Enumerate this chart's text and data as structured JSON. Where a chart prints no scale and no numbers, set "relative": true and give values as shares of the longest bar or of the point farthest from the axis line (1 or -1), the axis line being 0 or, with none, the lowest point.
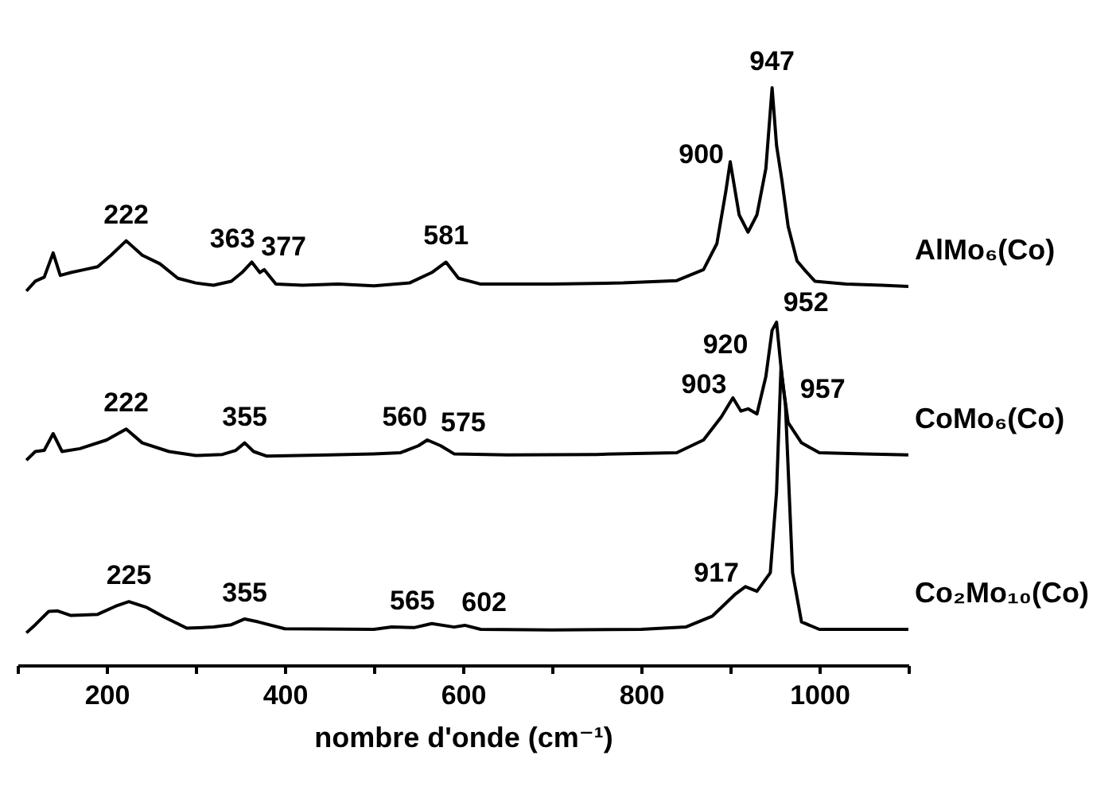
{
  "chart_data": {
    "type": "line",
    "relative": true,
    "xlabel": "nombre d'onde (cm⁻¹)",
    "xlim": [
      100,
      1100
    ],
    "xticks": [
      {
        "value": 100,
        "label": null
      },
      200,
      {
        "value": 300,
        "label": null
      },
      400,
      {
        "value": 500,
        "label": null
      },
      600,
      {
        "value": 700,
        "label": null
      },
      800,
      {
        "value": 900,
        "label": null
      },
      1000,
      {
        "value": 1100,
        "label": null
      }
    ],
    "grid": false,
    "legend": false,
    "line_style": "solid",
    "marker": "none",
    "series": [
      {
        "name": "AlMo₆(Co)",
        "color": "#000000",
        "x": [
          110,
          120,
          130,
          140,
          148,
          160,
          175,
          190,
          205,
          222,
          240,
          260,
          280,
          300,
          320,
          340,
          352,
          363,
          372,
          377,
          390,
          420,
          460,
          500,
          540,
          565,
          581,
          595,
          620,
          700,
          780,
          840,
          870,
          885,
          895,
          900,
          910,
          920,
          930,
          940,
          947,
          952,
          958,
          965,
          975,
          985,
          995,
          1030,
          1070,
          1100
        ],
        "values": [
          0.648,
          0.665,
          0.672,
          0.714,
          0.675,
          0.68,
          0.685,
          0.69,
          0.71,
          0.735,
          0.71,
          0.695,
          0.67,
          0.662,
          0.658,
          0.665,
          0.68,
          0.698,
          0.68,
          0.685,
          0.66,
          0.658,
          0.66,
          0.657,
          0.662,
          0.68,
          0.698,
          0.67,
          0.66,
          0.66,
          0.662,
          0.666,
          0.685,
          0.73,
          0.82,
          0.872,
          0.78,
          0.75,
          0.78,
          0.86,
          1,
          0.9,
          0.84,
          0.76,
          0.7,
          0.682,
          0.665,
          0.66,
          0.658,
          0.656
        ]
      },
      {
        "name": "CoMo₆(Co)",
        "color": "#000000",
        "x": [
          110,
          120,
          130,
          140,
          150,
          170,
          200,
          222,
          240,
          270,
          300,
          330,
          345,
          355,
          365,
          380,
          450,
          500,
          530,
          550,
          560,
          575,
          590,
          650,
          750,
          840,
          870,
          890,
          903,
          912,
          920,
          930,
          940,
          947,
          952,
          958,
          965,
          980,
          1000,
          1050,
          1100
        ],
        "values": [
          0.355,
          0.37,
          0.372,
          0.401,
          0.37,
          0.375,
          0.39,
          0.409,
          0.385,
          0.37,
          0.363,
          0.365,
          0.372,
          0.385,
          0.37,
          0.362,
          0.364,
          0.366,
          0.368,
          0.38,
          0.39,
          0.38,
          0.366,
          0.364,
          0.365,
          0.368,
          0.39,
          0.43,
          0.463,
          0.44,
          0.444,
          0.435,
          0.5,
          0.58,
          0.594,
          0.5,
          0.42,
          0.385,
          0.368,
          0.366,
          0.364
        ]
      },
      {
        "name": "Co₂Mo₁₀(Co)",
        "color": "#000000",
        "x": [
          110,
          120,
          135,
          145,
          160,
          190,
          210,
          225,
          245,
          265,
          290,
          320,
          340,
          355,
          370,
          400,
          500,
          520,
          545,
          565,
          590,
          602,
          620,
          700,
          800,
          850,
          880,
          905,
          917,
          930,
          945,
          952,
          957,
          962,
          970,
          980,
          1000,
          1100
        ],
        "values": [
          0.056,
          0.07,
          0.093,
          0.094,
          0.086,
          0.088,
          0.102,
          0.11,
          0.1,
          0.083,
          0.064,
          0.066,
          0.07,
          0.08,
          0.075,
          0.063,
          0.062,
          0.066,
          0.065,
          0.072,
          0.066,
          0.069,
          0.062,
          0.061,
          0.062,
          0.066,
          0.085,
          0.122,
          0.136,
          0.128,
          0.16,
          0.3,
          0.516,
          0.45,
          0.16,
          0.075,
          0.062,
          0.062
        ]
      }
    ],
    "annotations": [
      {
        "text": "222",
        "x": 222,
        "y": 0.735
      },
      {
        "text": "363",
        "x": 363,
        "y": 0.698
      },
      {
        "text": "377",
        "x": 377,
        "y": 0.685
      },
      {
        "text": "581",
        "x": 581,
        "y": 0.698
      },
      {
        "text": "900",
        "x": 900,
        "y": 0.872
      },
      {
        "text": "947",
        "x": 947,
        "y": 1
      },
      {
        "text": "952",
        "x": 985,
        "y": 0.682
      },
      {
        "text": "222",
        "x": 222,
        "y": 0.409
      },
      {
        "text": "355",
        "x": 355,
        "y": 0.385
      },
      {
        "text": "560",
        "x": 560,
        "y": 0.39
      },
      {
        "text": "575",
        "x": 575,
        "y": 0.38
      },
      {
        "text": "903",
        "x": 903,
        "y": 0.463
      },
      {
        "text": "920",
        "x": 920,
        "y": 0.444
      },
      {
        "text": "957",
        "x": 957,
        "y": 0.516
      },
      {
        "text": "225",
        "x": 225,
        "y": 0.11
      },
      {
        "text": "355",
        "x": 355,
        "y": 0.08
      },
      {
        "text": "565",
        "x": 565,
        "y": 0.072
      },
      {
        "text": "602",
        "x": 602,
        "y": 0.069
      },
      {
        "text": "917",
        "x": 917,
        "y": 0.136
      }
    ]
  }
}
